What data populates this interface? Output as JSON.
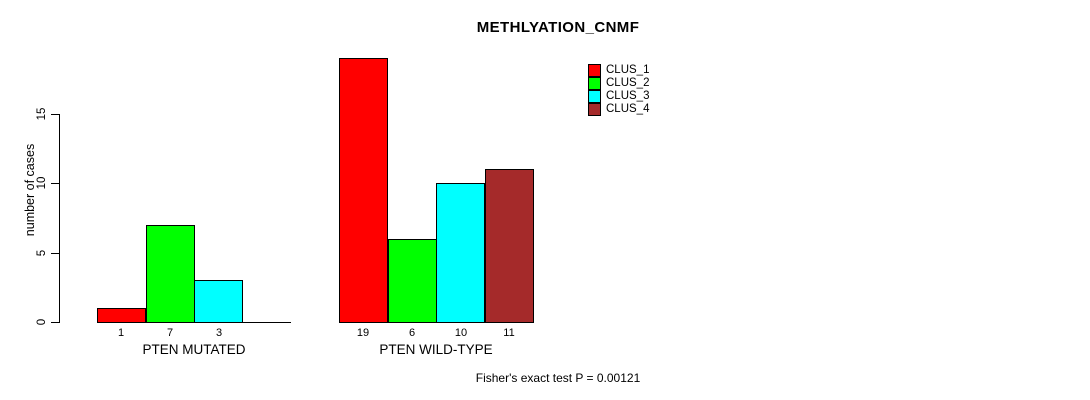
{
  "chart_data": {
    "type": "bar",
    "title": "METHLYATION_CNMF",
    "ylabel": "number of cases",
    "xlabel": "",
    "footnote": "Fisher's exact test P = 0.00121",
    "categories": [
      "PTEN MUTATED",
      "PTEN WILD-TYPE"
    ],
    "series": [
      {
        "name": "CLUS_1",
        "color": "#FF0000",
        "values": [
          1,
          19
        ]
      },
      {
        "name": "CLUS_2",
        "color": "#00FF00",
        "values": [
          7,
          6
        ]
      },
      {
        "name": "CLUS_3",
        "color": "#00FFFF",
        "values": [
          3,
          10
        ]
      },
      {
        "name": "CLUS_4",
        "color": "#A52A2A",
        "values": [
          0,
          11
        ]
      }
    ],
    "bar_value_labels": {
      "PTEN MUTATED": [
        1,
        7,
        3
      ],
      "PTEN WILD-TYPE": [
        19,
        6,
        10,
        11
      ]
    },
    "yticks": [
      0,
      5,
      10,
      15
    ],
    "ylim": [
      0,
      19
    ],
    "grid": false,
    "legend_position": "top-right",
    "axis_color": "#000000",
    "text_color": "#000000",
    "background_color": "#FFFFFF"
  }
}
